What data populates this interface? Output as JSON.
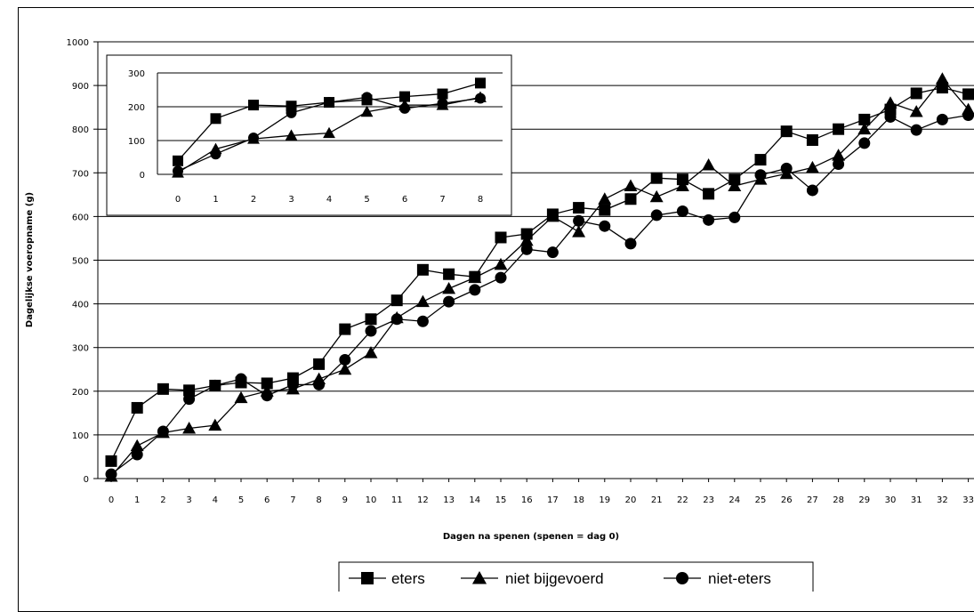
{
  "chart_data": [
    {
      "type": "line",
      "xlabel": "Dagen na spenen (spenen = dag 0)",
      "ylabel": "Dagelijkse voeropname (g)",
      "ylim": [
        0,
        1000
      ],
      "yticks": [
        "0",
        "100",
        "200",
        "300",
        "400",
        "500",
        "600",
        "700",
        "800",
        "900",
        "1000"
      ],
      "x": [
        0,
        1,
        2,
        3,
        4,
        5,
        6,
        7,
        8,
        9,
        10,
        11,
        12,
        13,
        14,
        15,
        16,
        17,
        18,
        19,
        20,
        21,
        22,
        23,
        24,
        25,
        26,
        27,
        28,
        29,
        30,
        31,
        32,
        33
      ],
      "grid": true,
      "legend_position": "bottom",
      "series": [
        {
          "name": "eters",
          "marker": "square",
          "values": [
            40,
            162,
            205,
            202,
            213,
            220,
            218,
            230,
            262,
            342,
            365,
            408,
            478,
            468,
            462,
            552,
            560,
            605,
            620,
            615,
            640,
            688,
            685,
            652,
            685,
            730,
            795,
            775,
            800,
            822,
            845,
            882,
            895,
            880
          ]
        },
        {
          "name": "niet bijgevoerd",
          "marker": "triangle",
          "values": [
            5,
            75,
            105,
            115,
            122,
            185,
            200,
            205,
            228,
            250,
            288,
            368,
            405,
            435,
            460,
            490,
            545,
            600,
            565,
            640,
            670,
            645,
            670,
            718,
            670,
            685,
            698,
            712,
            740,
            800,
            860,
            840,
            915,
            845
          ]
        },
        {
          "name": "niet-eters",
          "marker": "circle",
          "values": [
            10,
            55,
            108,
            182,
            213,
            228,
            190,
            215,
            215,
            272,
            338,
            365,
            360,
            405,
            432,
            460,
            525,
            518,
            590,
            578,
            538,
            603,
            612,
            592,
            598,
            695,
            710,
            660,
            720,
            768,
            828,
            798,
            822,
            832
          ]
        }
      ]
    },
    {
      "type": "line",
      "ylim": [
        0,
        300
      ],
      "yticks": [
        "0",
        "100",
        "200",
        "300"
      ],
      "x": [
        0,
        1,
        2,
        3,
        4,
        5,
        6,
        7,
        8
      ],
      "grid": true,
      "series": [
        {
          "name": "eters",
          "marker": "square",
          "values": [
            40,
            165,
            205,
            202,
            213,
            220,
            230,
            238,
            270
          ]
        },
        {
          "name": "niet bijgevoerd",
          "marker": "triangle",
          "values": [
            5,
            75,
            105,
            115,
            122,
            185,
            205,
            205,
            228
          ]
        },
        {
          "name": "niet-eters",
          "marker": "circle",
          "values": [
            10,
            60,
            108,
            182,
            213,
            228,
            195,
            210,
            225
          ]
        }
      ]
    }
  ]
}
